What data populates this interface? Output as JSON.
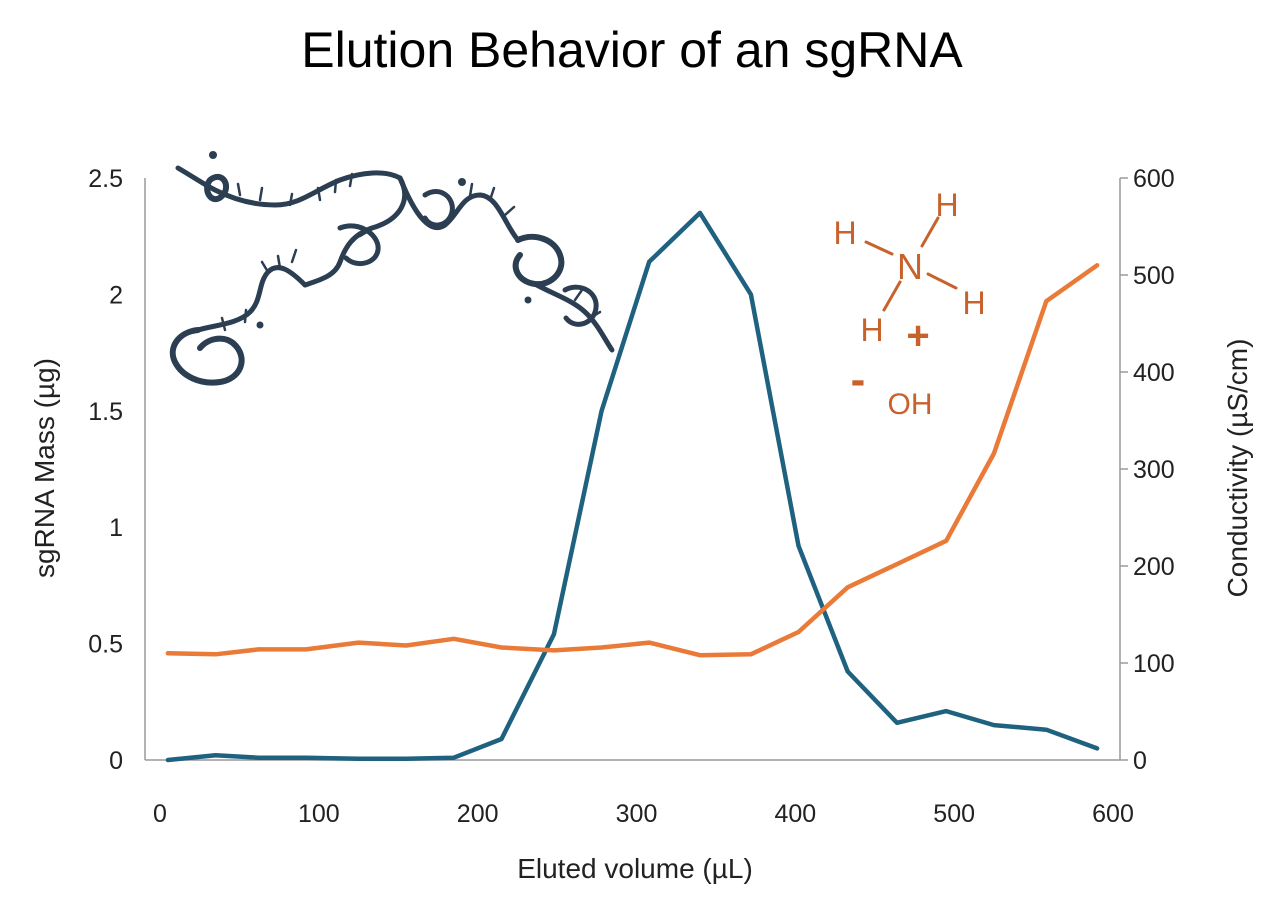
{
  "colors": {
    "mass": "#1f6280",
    "conductivity": "#ea7a37",
    "axis": "#9a9a9a",
    "chem": "#c8622c",
    "rna": "#2b3e52"
  },
  "chemistry": {
    "h1": "H",
    "h2": "H",
    "h3": "H",
    "h4": "H",
    "n": "N",
    "plus": "+",
    "minus": "-",
    "oh": "OH"
  },
  "chart_data": {
    "type": "line",
    "title": "Elution Behavior of an sgRNA",
    "xlabel": "Eluted volume (µL)",
    "ylabel": "sgRNA Mass (µg)",
    "y2label": "Conductivity (µS/cm)",
    "xlim": [
      0,
      600
    ],
    "ylim": [
      0,
      2.5
    ],
    "y2lim": [
      0,
      600
    ],
    "xticks": [
      "0",
      "100",
      "200",
      "300",
      "400",
      "500",
      "600"
    ],
    "yticks": [
      "0",
      "0.5",
      "1",
      "1.5",
      "2",
      "2.5"
    ],
    "y2ticks": [
      "0",
      "100",
      "200",
      "300",
      "400",
      "500",
      "600"
    ],
    "grid": false,
    "series": [
      {
        "axis": "left",
        "color": "#1f6280",
        "points": [
          [
            5,
            0.0
          ],
          [
            35,
            0.02
          ],
          [
            62,
            0.01
          ],
          [
            92,
            0.01
          ],
          [
            125,
            0.005
          ],
          [
            155,
            0.005
          ],
          [
            185,
            0.01
          ],
          [
            215,
            0.09
          ],
          [
            248,
            0.54
          ],
          [
            278,
            1.5
          ],
          [
            308,
            2.14
          ],
          [
            340,
            2.35
          ],
          [
            372,
            2.0
          ],
          [
            402,
            0.92
          ],
          [
            433,
            0.38
          ],
          [
            464,
            0.16
          ],
          [
            495,
            0.21
          ],
          [
            525,
            0.15
          ],
          [
            558,
            0.13
          ],
          [
            590,
            0.05
          ]
        ]
      },
      {
        "axis": "right",
        "color": "#ea7a37",
        "points": [
          [
            5,
            110
          ],
          [
            35,
            109
          ],
          [
            62,
            114
          ],
          [
            92,
            114
          ],
          [
            125,
            121
          ],
          [
            155,
            118
          ],
          [
            185,
            125
          ],
          [
            215,
            116
          ],
          [
            248,
            113
          ],
          [
            278,
            116
          ],
          [
            308,
            121
          ],
          [
            340,
            108
          ],
          [
            372,
            109
          ],
          [
            402,
            132
          ],
          [
            433,
            178
          ],
          [
            464,
            202
          ],
          [
            495,
            226
          ],
          [
            525,
            316
          ],
          [
            558,
            473
          ],
          [
            590,
            510
          ]
        ]
      }
    ]
  }
}
